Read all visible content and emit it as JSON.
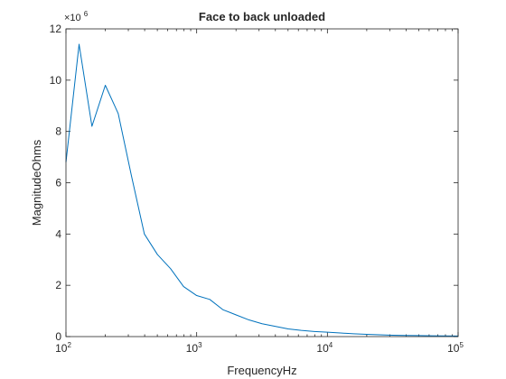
{
  "chart_data": {
    "type": "line",
    "title": "Face to back unloaded",
    "xlabel": "FrequencyHz",
    "ylabel": "MagnitudeOhms",
    "xscale": "log",
    "xlim": [
      100,
      100000
    ],
    "ylim": [
      0,
      12000000
    ],
    "y_exponent_label": "×10",
    "y_exponent": "6",
    "grid": false,
    "box": true,
    "x_ticks": [
      {
        "value": 100,
        "base": "10",
        "exp": "2"
      },
      {
        "value": 1000,
        "base": "10",
        "exp": "3"
      },
      {
        "value": 10000,
        "base": "10",
        "exp": "4"
      },
      {
        "value": 100000,
        "base": "10",
        "exp": "5"
      }
    ],
    "y_ticks": [
      {
        "value": 0,
        "label": "0"
      },
      {
        "value": 2000000,
        "label": "2"
      },
      {
        "value": 4000000,
        "label": "4"
      },
      {
        "value": 6000000,
        "label": "6"
      },
      {
        "value": 8000000,
        "label": "8"
      },
      {
        "value": 10000000,
        "label": "10"
      },
      {
        "value": 12000000,
        "label": "12"
      }
    ],
    "series": [
      {
        "color": "#0072bd",
        "x": [
          100,
          126,
          158,
          200,
          251,
          316,
          398,
          501,
          631,
          794,
          1000,
          1259,
          1585,
          1995,
          2512,
          3162,
          3981,
          5012,
          6310,
          7943,
          10000,
          12589,
          15849,
          19953,
          25119,
          31623,
          39811,
          50119,
          63096,
          79433,
          100000
        ],
        "y": [
          6800000,
          11400000,
          8200000,
          9800000,
          8700000,
          6300000,
          4000000,
          3200000,
          2650000,
          1950000,
          1600000,
          1450000,
          1050000,
          850000,
          650000,
          500000,
          400000,
          300000,
          240000,
          200000,
          170000,
          140000,
          110000,
          90000,
          70000,
          55000,
          45000,
          38000,
          32000,
          27000,
          23000
        ]
      }
    ]
  }
}
